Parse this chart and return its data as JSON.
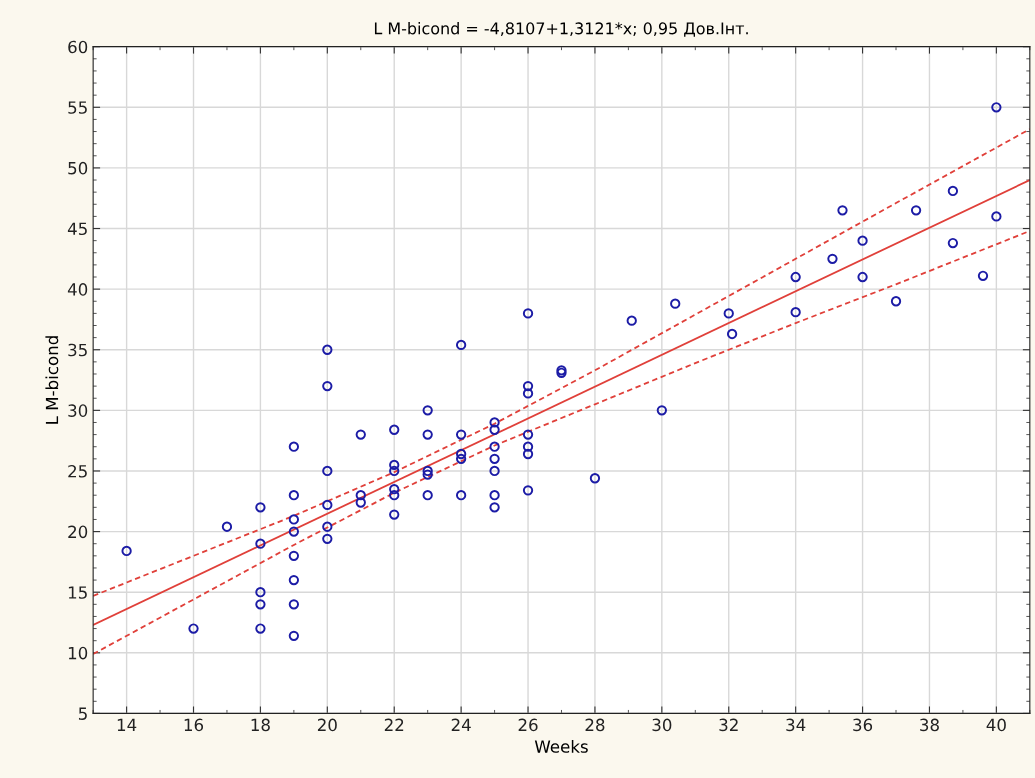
{
  "chart_data": {
    "type": "scatter",
    "title": "L M-bicond = -4,8107+1,3121*x; 0,95 Дов.Інт.",
    "xlabel": "Weeks",
    "ylabel": "L M-bicond",
    "xlim": [
      13,
      41
    ],
    "xticks": [
      14,
      16,
      18,
      20,
      22,
      24,
      26,
      28,
      30,
      32,
      34,
      36,
      38,
      40
    ],
    "ylim": [
      5,
      60
    ],
    "yticks": [
      5,
      10,
      15,
      20,
      25,
      30,
      35,
      40,
      45,
      50,
      55,
      60
    ],
    "grid": true,
    "marker": "circle",
    "series": [
      {
        "color": "#1c1ca6",
        "x": [
          14,
          16,
          17,
          18,
          18,
          18,
          18,
          18,
          19,
          19,
          19,
          19,
          19,
          19,
          19,
          19,
          20,
          20,
          20,
          20,
          20,
          20,
          21,
          21,
          21,
          22,
          22,
          22,
          22,
          22,
          22,
          23,
          23,
          23,
          23,
          23,
          24,
          24,
          24,
          24,
          24,
          25,
          25,
          25,
          25,
          25,
          25,
          25,
          26,
          26,
          26,
          26,
          26,
          26,
          26,
          27,
          27,
          28,
          29.1,
          30,
          30.4,
          32,
          32.1,
          34,
          34,
          35.1,
          35.4,
          36,
          36,
          37,
          37.6,
          38.7,
          38.7,
          39.6,
          40,
          40
        ],
        "values": [
          18.4,
          12.0,
          20.4,
          22.0,
          19.0,
          15.0,
          14.0,
          12.0,
          27.0,
          23.0,
          21.0,
          20.0,
          18.0,
          16.0,
          14.0,
          11.4,
          35.0,
          32.0,
          25.0,
          22.2,
          20.4,
          19.4,
          28.0,
          23.0,
          22.4,
          28.4,
          25.5,
          25.0,
          23.5,
          23.0,
          21.4,
          30.0,
          28.0,
          25.0,
          24.7,
          23.0,
          35.4,
          28.0,
          26.4,
          26.0,
          23.0,
          29.0,
          28.4,
          27.0,
          26.0,
          25.0,
          23.0,
          22.0,
          38.0,
          32.0,
          31.4,
          28.0,
          27.0,
          26.4,
          23.4,
          33.1,
          33.3,
          24.4,
          37.4,
          30.0,
          38.8,
          38.0,
          36.3,
          41.0,
          38.1,
          42.5,
          46.5,
          44.0,
          41.0,
          39.0,
          46.5,
          48.1,
          43.8,
          41.1,
          55.0,
          46.0
        ]
      },
      {
        "type": "line",
        "line_style": "solid",
        "marker": "none",
        "color": "#e0403a",
        "x": [
          13,
          41
        ],
        "values": [
          12.3,
          49.0
        ]
      },
      {
        "type": "line",
        "line_style": "dashed",
        "marker": "none",
        "color": "#e0403a",
        "x": [
          13,
          16,
          19,
          22,
          25,
          28,
          31,
          34,
          37,
          41
        ],
        "values": [
          14.7,
          18.0,
          21.3,
          24.9,
          28.9,
          33.3,
          37.9,
          42.5,
          47.1,
          53.2
        ]
      },
      {
        "type": "line",
        "line_style": "dashed",
        "marker": "none",
        "color": "#e0403a",
        "x": [
          13,
          16,
          19,
          22,
          25,
          28,
          31,
          34,
          37,
          41
        ],
        "values": [
          9.9,
          14.4,
          18.9,
          23.2,
          27.1,
          30.5,
          33.9,
          37.2,
          40.4,
          44.8
        ]
      }
    ]
  }
}
